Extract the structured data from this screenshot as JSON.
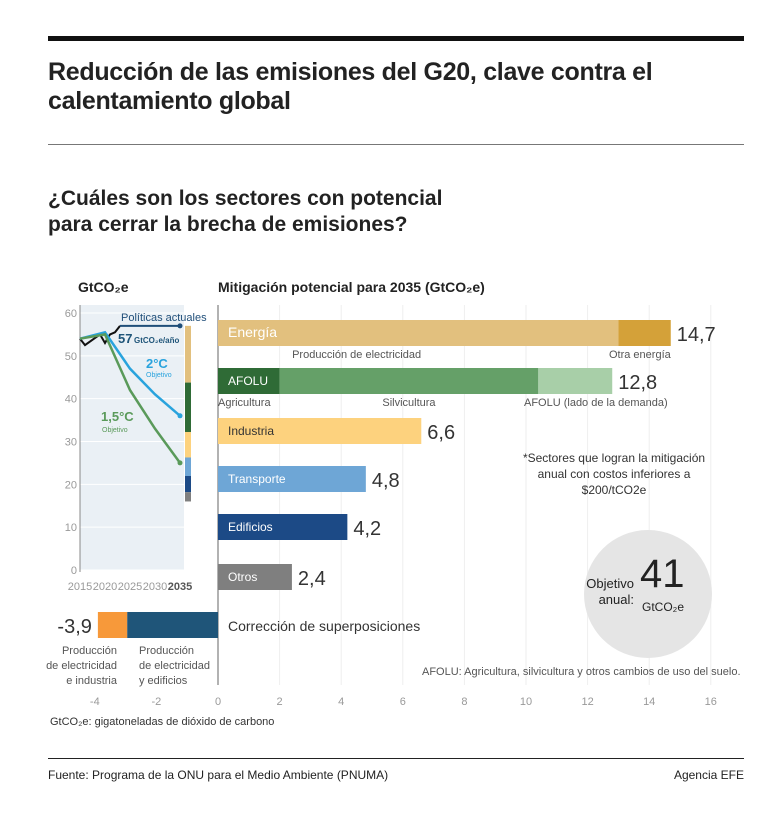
{
  "title": "Reducción de las emisiones del G20, clave contra el calentamiento global",
  "subtitle": "¿Cuáles son los sectores con potencial para cerrar la brecha de emisiones?",
  "chart_data": [
    {
      "type": "line",
      "ylabel": "GtCO₂e",
      "ylim": [
        0,
        60
      ],
      "xlim": [
        2015,
        2035
      ],
      "yticks": [
        0,
        10,
        20,
        30,
        40,
        50,
        60
      ],
      "xticks": [
        "2015",
        "2020",
        "2025",
        "2030",
        "2035"
      ],
      "series": [
        {
          "name": "Políticas actuales",
          "color": "#1f4e79",
          "x": [
            2015,
            2016,
            2019,
            2020,
            2021,
            2022,
            2023,
            2035
          ],
          "y": [
            54,
            52.5,
            55,
            53,
            55,
            55.5,
            57,
            57
          ]
        },
        {
          "name": "2°C",
          "note": "Objetivo",
          "color": "#29a3dd",
          "x": [
            2015,
            2020,
            2025,
            2030,
            2035
          ],
          "y": [
            54,
            55.5,
            47,
            41,
            36
          ]
        },
        {
          "name": "1,5°C",
          "note": "Objetivo",
          "color": "#5a9a5a",
          "x": [
            2015,
            2020,
            2025,
            2030,
            2035
          ],
          "y": [
            54,
            55,
            42,
            33,
            25
          ]
        }
      ],
      "annotation": {
        "value": "57",
        "unit": "GtCO₂e/año"
      }
    },
    {
      "type": "bar",
      "title": "Mitigación potencial para 2035 (GtCO₂e)",
      "xlim": [
        -4,
        16
      ],
      "xticks": [
        -4,
        -2,
        0,
        2,
        4,
        6,
        8,
        10,
        12,
        14,
        16
      ],
      "bars": [
        {
          "name": "Energía",
          "total": "14,7",
          "segments": [
            {
              "label": "Producción de electricidad",
              "value": 13.0,
              "color": "#e2c07e"
            },
            {
              "label": "Otra energía",
              "value": 1.7,
              "color": "#d4a139"
            }
          ]
        },
        {
          "name": "AFOLU",
          "total": "12,8",
          "segments": [
            {
              "label": "Agricultura",
              "value": 2.0,
              "color": "#2f6b36"
            },
            {
              "label": "Silvicultura",
              "value": 8.4,
              "color": "#65a068"
            },
            {
              "label": "AFOLU (lado de la demanda)",
              "value": 2.4,
              "color": "#a8cfa8"
            }
          ]
        },
        {
          "name": "Industria",
          "total": "6,6",
          "segments": [
            {
              "label": "",
              "value": 6.6,
              "color": "#fdd27e"
            }
          ]
        },
        {
          "name": "Transporte",
          "total": "4,8",
          "segments": [
            {
              "label": "",
              "value": 4.8,
              "color": "#6ea6d6"
            }
          ]
        },
        {
          "name": "Edificios",
          "total": "4,2",
          "segments": [
            {
              "label": "",
              "value": 4.2,
              "color": "#1c4a86"
            }
          ]
        },
        {
          "name": "Otros",
          "total": "2,4",
          "segments": [
            {
              "label": "",
              "value": 2.4,
              "color": "#7f7f7f"
            }
          ]
        }
      ],
      "correction": {
        "label": "Corrección de superposiciones",
        "total": "-3,9",
        "segments": [
          {
            "label": "Producción de electricidad e industria",
            "value": -0.95,
            "color": "#f7993a"
          },
          {
            "label": "Producción de electricidad y edificios",
            "value": -2.95,
            "color": "#1f5579"
          }
        ]
      }
    }
  ],
  "note": "*Sectores que logran la mitigación anual con costos inferiores a $200/tCO2e",
  "target": {
    "label1": "Objetivo",
    "label2": "anual:",
    "value": "41",
    "unit": "GtCO₂e"
  },
  "afolu_note": "AFOLU: Agricultura, silvicultura y otros cambios de uso del suelo.",
  "gt_note": "GtCO₂e: gigatoneladas de dióxido de carbono",
  "source": "Fuente: Programa de la ONU para el Medio Ambiente (PNUMA)",
  "agency": "Agencia EFE"
}
